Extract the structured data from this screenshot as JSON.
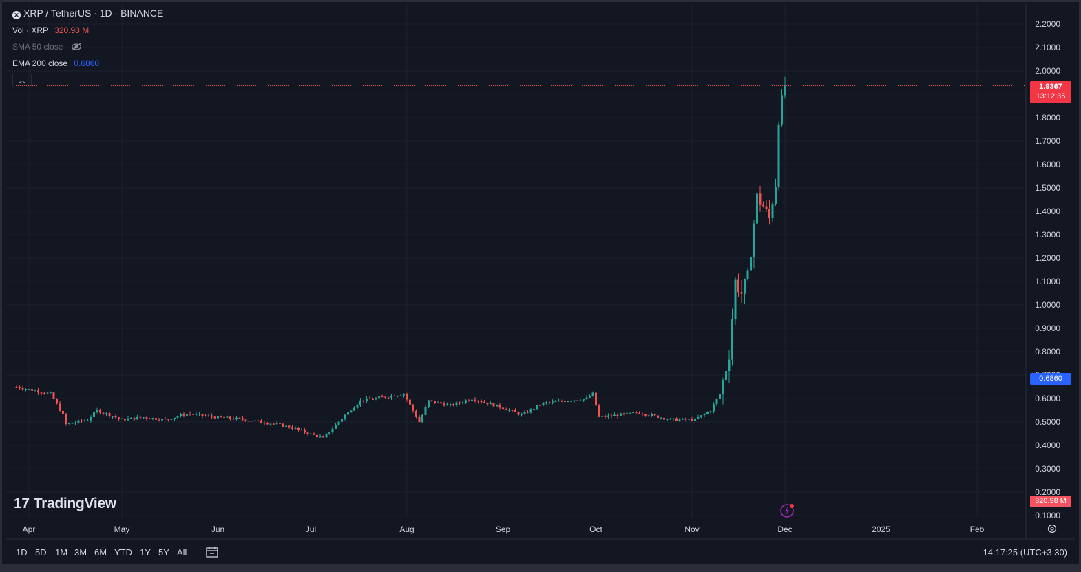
{
  "header": {
    "symbol_title": "XRP / TetherUS · 1D · BINANCE",
    "vol_label": "Vol · XRP",
    "vol_value": "320.98 M",
    "sma_label": "SMA 50 close",
    "ema_label": "EMA 200 close",
    "ema_value": "0.6860"
  },
  "badges": {
    "last_price": "1.9367",
    "countdown": "13:12:35",
    "ema_badge": "0.6860",
    "volume_badge": "320.98 M"
  },
  "logo": {
    "text": "TradingView"
  },
  "range_buttons": [
    "1D",
    "5D",
    "1M",
    "3M",
    "6M",
    "YTD",
    "1Y",
    "5Y",
    "All"
  ],
  "clock": "14:17:25 (UTC+3:30)",
  "colors": {
    "up": "#26a69a",
    "down": "#ef5350",
    "ema": "#2962ff",
    "background": "#131722",
    "grid": "#1e222d"
  },
  "icons": {
    "hidden": "eye-off-icon",
    "collapse": "chevron-up-icon",
    "goto_date": "calendar-icon",
    "settings": "gear-icon",
    "event": "lightning-icon"
  },
  "chart_data": {
    "type": "candlestick",
    "y_ticks": [
      "2.2000",
      "2.1000",
      "2.0000",
      "1.9000",
      "1.8000",
      "1.7000",
      "1.6000",
      "1.5000",
      "1.4000",
      "1.3000",
      "1.2000",
      "1.1000",
      "1.0000",
      "0.9000",
      "0.8000",
      "0.7000",
      "0.6000",
      "0.5000",
      "0.4000",
      "0.3000",
      "0.2000",
      "0.1000"
    ],
    "ylim": [
      0.1,
      2.2
    ],
    "x_labels": [
      "Apr",
      "May",
      "Jun",
      "Jul",
      "Aug",
      "Sep",
      "Oct",
      "Nov",
      "Dec",
      "2025",
      "Feb"
    ],
    "last_price": 1.9367,
    "ema_200": 0.686,
    "segments": [
      [
        "2024-03-28",
        0.65
      ],
      [
        "2024-04-08",
        0.62
      ],
      [
        "2024-04-12",
        0.53
      ],
      [
        "2024-04-13",
        0.49
      ],
      [
        "2024-04-20",
        0.51
      ],
      [
        "2024-04-23",
        0.55
      ],
      [
        "2024-05-01",
        0.51
      ],
      [
        "2024-05-08",
        0.52
      ],
      [
        "2024-05-15",
        0.51
      ],
      [
        "2024-05-22",
        0.535
      ],
      [
        "2024-06-01",
        0.52
      ],
      [
        "2024-06-10",
        0.51
      ],
      [
        "2024-06-20",
        0.49
      ],
      [
        "2024-06-25",
        0.475
      ],
      [
        "2024-07-05",
        0.43
      ],
      [
        "2024-07-12",
        0.53
      ],
      [
        "2024-07-17",
        0.59
      ],
      [
        "2024-07-31",
        0.62
      ],
      [
        "2024-08-05",
        0.5
      ],
      [
        "2024-08-08",
        0.59
      ],
      [
        "2024-08-15",
        0.57
      ],
      [
        "2024-08-22",
        0.6
      ],
      [
        "2024-09-01",
        0.56
      ],
      [
        "2024-09-07",
        0.53
      ],
      [
        "2024-09-14",
        0.58
      ],
      [
        "2024-09-28",
        0.6
      ],
      [
        "2024-09-30",
        0.62
      ],
      [
        "2024-10-02",
        0.52
      ],
      [
        "2024-10-15",
        0.54
      ],
      [
        "2024-10-25",
        0.51
      ],
      [
        "2024-11-02",
        0.51
      ],
      [
        "2024-11-07",
        0.55
      ],
      [
        "2024-11-10",
        0.62
      ],
      [
        "2024-11-12",
        0.73
      ],
      [
        "2024-11-13",
        0.79
      ],
      [
        "2024-11-15",
        1.1
      ],
      [
        "2024-11-17",
        1.05
      ],
      [
        "2024-11-19",
        1.12
      ],
      [
        "2024-11-21",
        1.35
      ],
      [
        "2024-11-22",
        1.46
      ],
      [
        "2024-11-24",
        1.42
      ],
      [
        "2024-11-26",
        1.37
      ],
      [
        "2024-11-28",
        1.52
      ],
      [
        "2024-11-29",
        1.8
      ],
      [
        "2024-12-01",
        1.9367
      ]
    ]
  }
}
